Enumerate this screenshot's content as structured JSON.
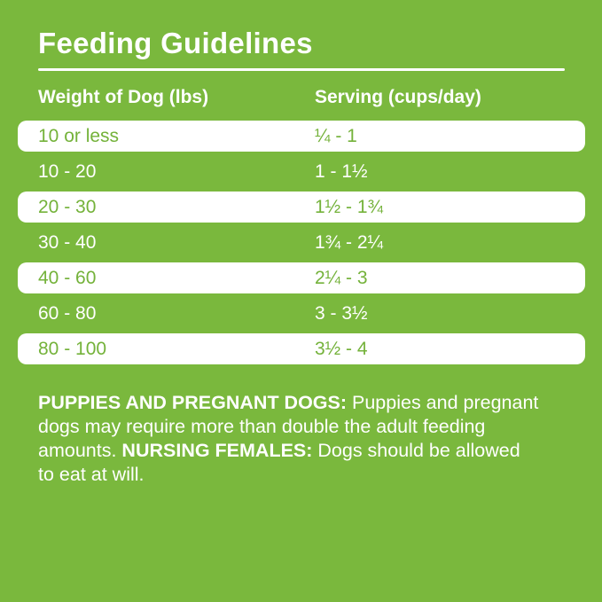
{
  "page": {
    "title": "Feeding Guidelines"
  },
  "colors": {
    "background_green": "#7AB83D",
    "row_white": "#FFFFFF",
    "text_green_on_white": "#74B23A",
    "text_white": "#FFFFFF"
  },
  "table": {
    "columns": [
      "Weight of Dog (lbs)",
      "Serving (cups/day)"
    ],
    "rows": [
      {
        "weight": "10 or less",
        "serving": "¼ - 1"
      },
      {
        "weight": "10 - 20",
        "serving": "1 - 1½"
      },
      {
        "weight": "20 - 30",
        "serving": "1½ - 1¾"
      },
      {
        "weight": "30 - 40",
        "serving": "1¾ - 2¼"
      },
      {
        "weight": "40 - 60",
        "serving": "2¼ - 3"
      },
      {
        "weight": "60 - 80",
        "serving": "3 - 3½"
      },
      {
        "weight": "80 - 100",
        "serving": "3½ - 4"
      }
    ]
  },
  "footer": {
    "lines": [
      {
        "segments": [
          {
            "text": "PUPPIES AND PREGNANT DOGS:",
            "bold": true
          },
          {
            "text": " Puppies and pregnant",
            "bold": false
          }
        ]
      },
      {
        "segments": [
          {
            "text": "dogs may require more than double the adult feeding",
            "bold": false
          }
        ]
      },
      {
        "segments": [
          {
            "text": "amounts. ",
            "bold": false
          },
          {
            "text": "NURSING FEMALES:",
            "bold": true
          },
          {
            "text": " Dogs should be allowed",
            "bold": false
          }
        ]
      },
      {
        "segments": [
          {
            "text": "to eat at will.",
            "bold": false
          }
        ]
      }
    ]
  }
}
